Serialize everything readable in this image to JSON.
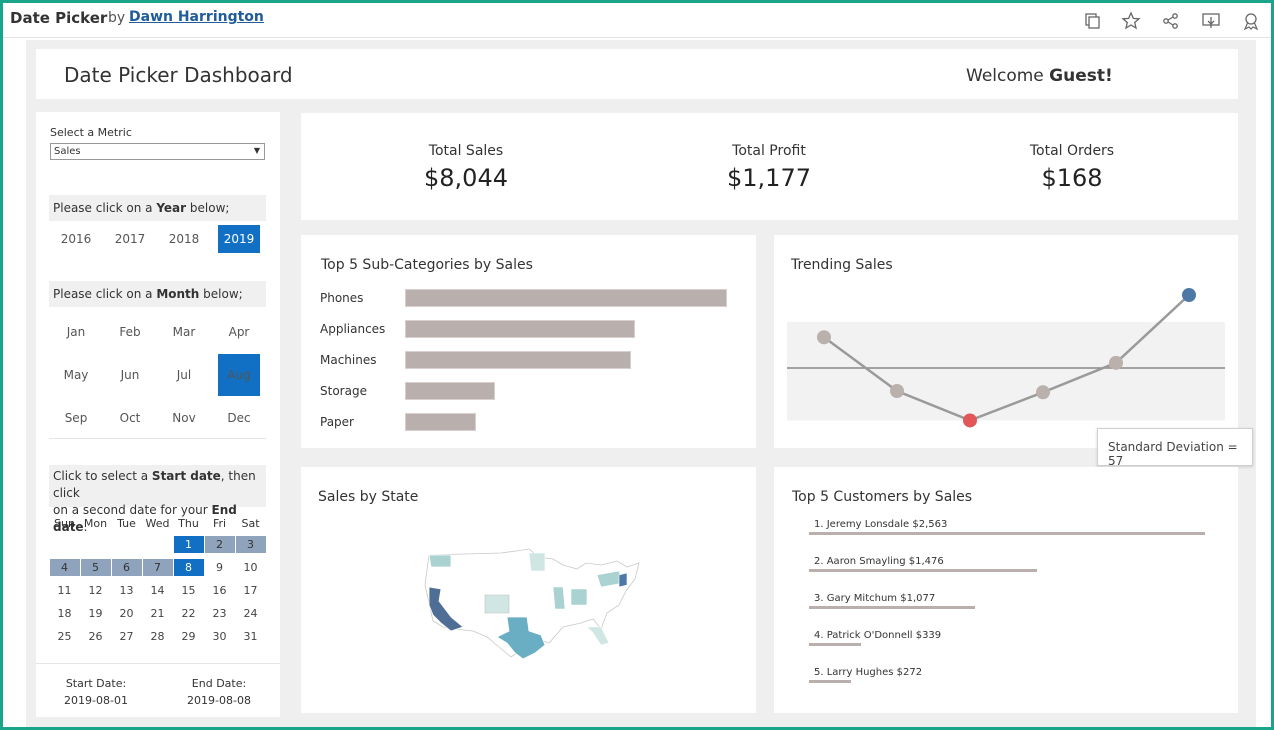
{
  "topbar": {
    "title": "Date Picker",
    "by": "by",
    "author": "Dawn Harrington",
    "icons": [
      "copy-icon",
      "star-icon",
      "share-icon",
      "download-icon",
      "badge-icon"
    ]
  },
  "header": {
    "title": "Date Picker Dashboard",
    "welcome_prefix": "Welcome",
    "welcome_name": "Guest!"
  },
  "metric": {
    "label": "Select a Metric",
    "value": "Sales"
  },
  "year_picker": {
    "prompt_prefix": "Please click on a",
    "prompt_bold": "Year",
    "prompt_suffix": "below;",
    "years": [
      "2016",
      "2017",
      "2018",
      "2019"
    ],
    "selected": "2019"
  },
  "month_picker": {
    "prompt_prefix": "Please click on a",
    "prompt_bold": "Month",
    "prompt_suffix": "below;",
    "months": [
      "Jan",
      "Feb",
      "Mar",
      "Apr",
      "May",
      "Jun",
      "Jul",
      "Aug",
      "Sep",
      "Oct",
      "Nov",
      "Dec"
    ],
    "selected": "Aug"
  },
  "calendar": {
    "instr_1": "Click to select a",
    "instr_start": "Start date",
    "instr_2": ", then click",
    "instr_3": "on a second date for your",
    "instr_end": "End date",
    "instr_4": ".",
    "weekdays": [
      "Sun",
      "Mon",
      "Tue",
      "Wed",
      "Thu",
      "Fri",
      "Sat"
    ],
    "first_weekday_index": 4,
    "days_in_month": 31,
    "selected_days": [
      1,
      8
    ],
    "range_days": [
      2,
      3,
      4,
      5,
      6,
      7
    ]
  },
  "dates": {
    "start_label": "Start Date:",
    "start_value": "2019-08-01",
    "end_label": "End Date:",
    "end_value": "2019-08-08"
  },
  "kpis": [
    {
      "label": "Total Sales",
      "value": "$8,044"
    },
    {
      "label": "Total Profit",
      "value": "$1,177"
    },
    {
      "label": "Total Orders",
      "value": "$168"
    }
  ],
  "top_subcategories": {
    "title": "Top 5 Sub-Categories by Sales",
    "categories": [
      "Phones",
      "Appliances",
      "Machines",
      "Storage",
      "Paper"
    ],
    "values": [
      100,
      71.5,
      70.2,
      28.1,
      21.9
    ]
  },
  "trending": {
    "title": "Trending Sales",
    "values": [
      0.67,
      0.25,
      0.02,
      0.24,
      0.47,
      1.0
    ],
    "band_low": 0.02,
    "band_high": 0.79,
    "mean": 0.43,
    "highlight_low_color": "#e15759",
    "highlight_high_color": "#4e79a7",
    "point_color": "#bab0ac",
    "tooltip": "Standard Deviation = 57"
  },
  "map": {
    "title": "Sales by State"
  },
  "top_customers": {
    "title": "Top 5 Customers by Sales",
    "items": [
      {
        "label": "1. Jeremy Lonsdale",
        "value": "$2,563",
        "amount": 2563
      },
      {
        "label": "2. Aaron Smayling",
        "value": "$1,476",
        "amount": 1476
      },
      {
        "label": "3. Gary Mitchum",
        "value": "$1,077",
        "amount": 1077
      },
      {
        "label": "4. Patrick O'Donnell",
        "value": "$339",
        "amount": 339
      },
      {
        "label": "5. Larry Hughes",
        "value": "$272",
        "amount": 272
      }
    ]
  },
  "colors": {
    "accent": "#1170c3",
    "range": "#8fa3bd",
    "bar": "#b9afad",
    "frame": "#1aa58a"
  }
}
